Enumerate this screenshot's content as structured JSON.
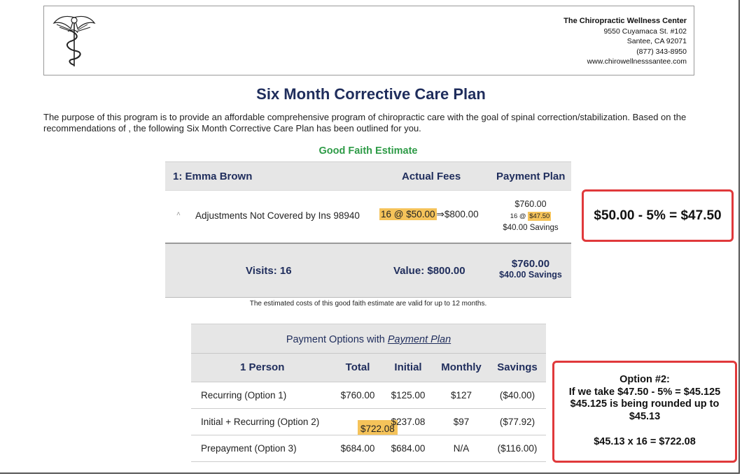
{
  "clinic": {
    "name": "The Chiropractic Wellness Center",
    "address": "9550 Cuyamaca St. #102",
    "city": "Santee, CA 92071",
    "phone": "(877) 343-8950",
    "website": "www.chirowellnesssantee.com"
  },
  "title": "Six Month Corrective Care Plan",
  "intro": "The purpose of this program is to provide an affordable comprehensive program of chiropractic care with the goal of spinal correction/stabilization. Based on the recommendations of , the following Six Month Corrective Care Plan has been outlined for you.",
  "estimate": {
    "heading": "Good Faith Estimate",
    "patient": "1: Emma Brown",
    "col_actual": "Actual Fees",
    "col_plan": "Payment Plan",
    "row": {
      "caret": "˄",
      "description": "Adjustments Not Covered by Ins 98940",
      "qty_rate": "16 @ $50.00",
      "arrow": "⇒",
      "amount": "$800.00",
      "plan_total": "$760.00",
      "plan_qty": "16 @",
      "plan_rate": "$47.50",
      "plan_savings": "$40.00 Savings"
    },
    "footer": {
      "visits": "Visits: 16",
      "value": "Value: $800.00",
      "plan_total": "$760.00",
      "plan_savings": "$40.00 Savings"
    },
    "note": "The estimated costs of this good faith estimate are valid for up to 12 months."
  },
  "payment": {
    "title_prefix": "Payment Options with",
    "title_link": "Payment Plan",
    "headers": [
      "1 Person",
      "Total",
      "Initial",
      "Monthly",
      "Savings"
    ],
    "rows": [
      {
        "name": "Recurring (Option 1)",
        "total": "$760.00",
        "initial": "$125.00",
        "monthly": "$127",
        "savings": "($40.00)"
      },
      {
        "name": "Initial + Recurring (Option 2)",
        "total": "$722.08",
        "initial": "$237.08",
        "monthly": "$97",
        "savings": "($77.92)"
      },
      {
        "name": "Prepayment (Option 3)",
        "total": "$684.00",
        "initial": "$684.00",
        "monthly": "N/A",
        "savings": "($116.00)"
      }
    ]
  },
  "callouts": {
    "first": "$50.00 - 5% = $47.50",
    "second": {
      "line1": "Option #2:",
      "line2": "If we take $47.50 - 5% = $45.125",
      "line3": "$45.125 is being rounded up to",
      "line4": "$45.13",
      "line5": "$45.13 x 16 = $722.08"
    }
  },
  "colors": {
    "navy": "#1f2d5c",
    "green": "#2e9b47",
    "highlight": "#f5c35a",
    "callout_border": "#e0393b"
  }
}
